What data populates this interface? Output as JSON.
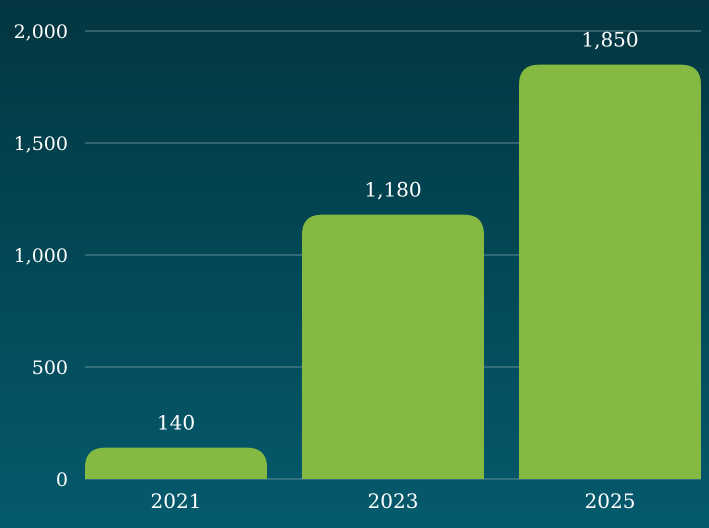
{
  "chart_data": {
    "type": "bar",
    "categories": [
      "2021",
      "2023",
      "2025"
    ],
    "values": [
      140,
      1180,
      1850
    ],
    "value_labels": [
      "140",
      "1,180",
      "1,850"
    ],
    "yticks": [
      0,
      500,
      1000,
      1500,
      2000
    ],
    "ytick_labels": [
      "0",
      "500",
      "1,000",
      "1,500",
      "2,000"
    ],
    "ylim": [
      0,
      2000
    ],
    "grid": true,
    "legend": "none",
    "colors": {
      "bar": "#86b942",
      "grid": "#5f8d96",
      "text": "#ffffff",
      "background_top": "#033640",
      "background_bottom": "#045a6c"
    }
  }
}
